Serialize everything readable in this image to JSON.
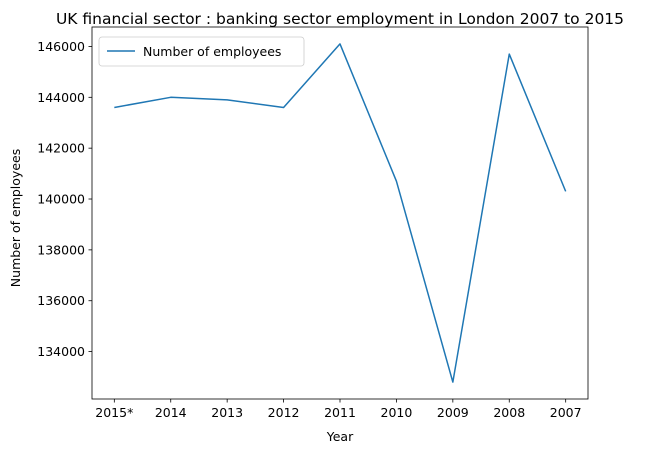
{
  "chart_data": {
    "type": "line",
    "title": "UK financial sector : banking sector employment in London 2007 to 2015",
    "xlabel": "Year",
    "ylabel": "Number of employees",
    "categories": [
      "2015*",
      "2014",
      "2013",
      "2012",
      "2011",
      "2010",
      "2009",
      "2008",
      "2007"
    ],
    "series": [
      {
        "name": "Number of employees",
        "color": "#1f77b4",
        "values": [
          143600,
          144000,
          143900,
          143600,
          146100,
          140700,
          132800,
          145700,
          140300
        ]
      }
    ],
    "ylim": [
      132135,
      146765
    ],
    "yticks": [
      134000,
      136000,
      138000,
      140000,
      142000,
      144000,
      146000
    ],
    "grid": false,
    "legend": "upper-left"
  }
}
